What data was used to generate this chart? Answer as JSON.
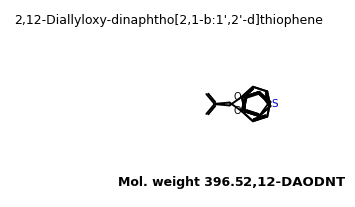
{
  "title": "2,12-Diallyloxy-dinaphtho[2,1-b:1',2'-d]thiophene",
  "mol_weight_label": "Mol. weight 396.5",
  "abbreviation": "2,12-DAODNT",
  "bg_color": "#ffffff",
  "line_color": "#000000",
  "title_fontsize": 9.0,
  "label_fontsize": 9.0,
  "abbrev_fontsize": 9.5,
  "S_label": "S",
  "O_label": "O",
  "S_color": "#0000cc",
  "O_color": "#000000"
}
